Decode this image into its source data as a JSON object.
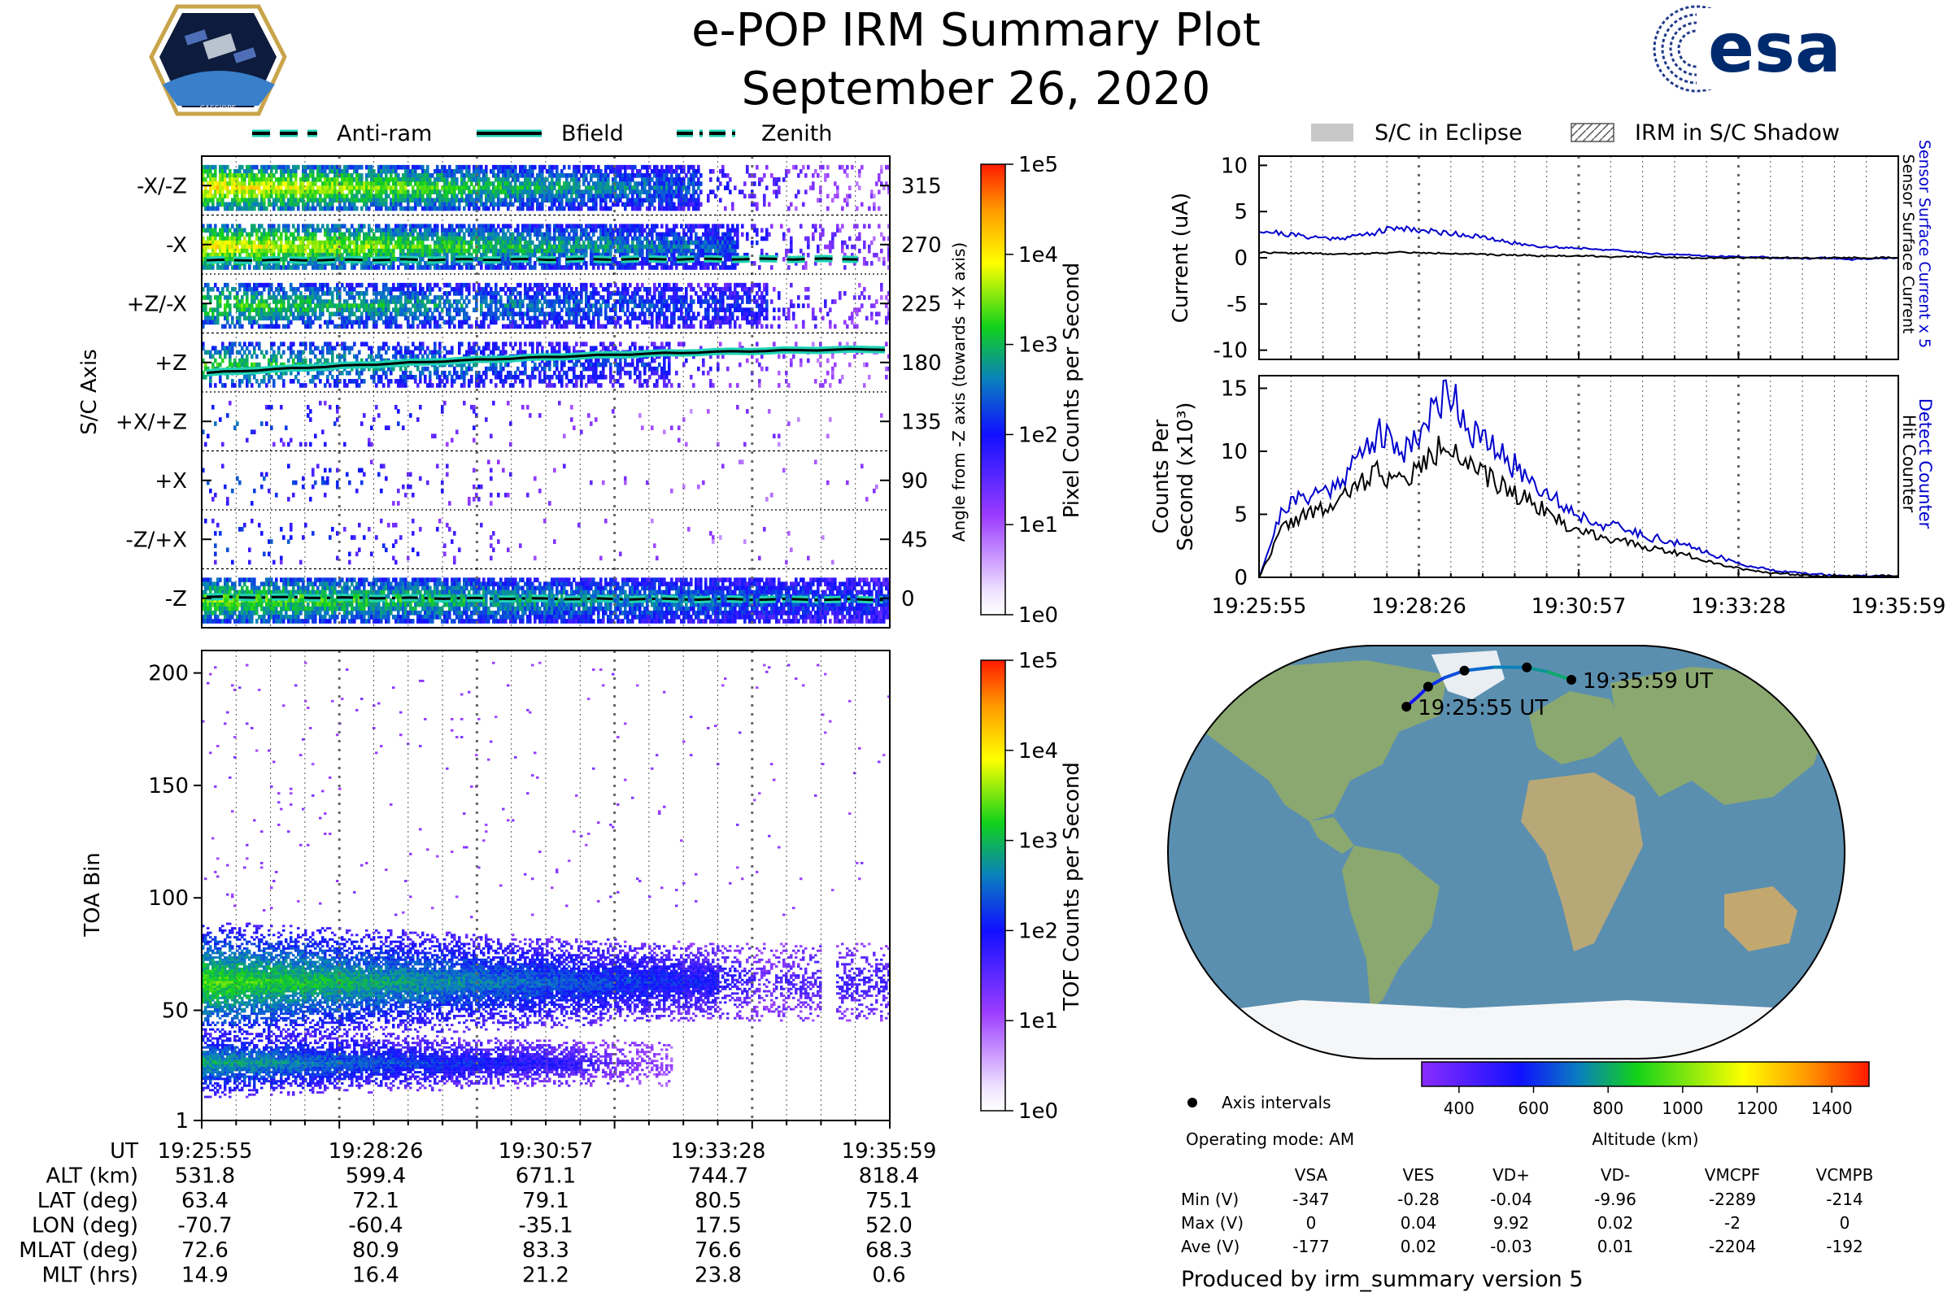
{
  "title": "e-POP IRM Summary Plot",
  "date": "September 26, 2020",
  "logos": {
    "mission_badge": "CASSIOPE",
    "agency": "esa"
  },
  "colors": {
    "blue": "#0000cc",
    "teal": "#1fd3b5",
    "eclipse": "#c8c8c8",
    "map_land": "#8ba870",
    "map_ocean": "#5b8fb0",
    "map_ice": "#f4f6f8"
  },
  "legend_top": {
    "items": [
      {
        "label": "Anti-ram",
        "style": "dashed"
      },
      {
        "label": "Bfield",
        "style": "solid"
      },
      {
        "label": "Zenith",
        "style": "dashdot"
      }
    ]
  },
  "legend_right": {
    "items": [
      {
        "label": "S/C in Eclipse",
        "style": "fill"
      },
      {
        "label": "IRM in S/C Shadow",
        "style": "hatch"
      }
    ]
  },
  "time_ticks": [
    "19:25:55",
    "19:28:26",
    "19:30:57",
    "19:33:28",
    "19:35:59"
  ],
  "chart_data": [
    {
      "id": "pixel",
      "type": "heatmap",
      "ylabel": "S/C Axis",
      "right_ylabel": "Angle from -Z axis (towards +X axis)",
      "sc_axes": [
        {
          "label": "-X/-Z",
          "angle": 315
        },
        {
          "label": "-X",
          "angle": 270
        },
        {
          "label": "+Z/-X",
          "angle": 225
        },
        {
          "label": "+Z",
          "angle": 180
        },
        {
          "label": "+X/+Z",
          "angle": 135
        },
        {
          "label": "+X",
          "angle": 90
        },
        {
          "label": "-Z/+X",
          "angle": 45
        },
        {
          "label": "-Z",
          "angle": 0
        }
      ],
      "angle_ticks": [
        "315",
        "270",
        "225",
        "180",
        "135",
        "90",
        "45",
        "0"
      ],
      "ylim": [
        -22.5,
        337.5
      ],
      "colorbar": {
        "label": "Pixel Counts per Second",
        "ticks": [
          "1e5",
          "1e4",
          "1e3",
          "1e2",
          "1e1",
          "1e0"
        ]
      },
      "lines": [
        {
          "name": "Anti-ram",
          "angle_start": 258,
          "angle_end": 259,
          "t_end": 0.96
        },
        {
          "name": "Bfield",
          "angle_start": 172,
          "angle_end": 190,
          "t_end": 1.0
        },
        {
          "name": "Zenith",
          "angle_start": 1,
          "angle_end": -1,
          "t_end": 1.0
        }
      ]
    },
    {
      "id": "tof",
      "type": "heatmap",
      "ylabel": "TOA Bin",
      "ylim": [
        1,
        210
      ],
      "yticks": [
        1,
        50,
        100,
        150,
        200
      ],
      "colorbar": {
        "label": "TOF Counts per Second",
        "ticks": [
          "1e5",
          "1e4",
          "1e3",
          "1e2",
          "1e1",
          "1e0"
        ]
      },
      "bands": [
        {
          "center": 62,
          "half_width": 12,
          "peak_log": 2.4,
          "fade_end": 0.75
        },
        {
          "center": 26,
          "half_width": 7,
          "peak_log": 1.9,
          "fade_end": 0.55
        }
      ]
    },
    {
      "id": "current",
      "type": "line",
      "ylabel": "Current (uA)",
      "right_labels": [
        "Sensor Surface Current x 5",
        "Sensor Surface Current"
      ],
      "ylim": [
        -11,
        11
      ],
      "yticks": [
        10,
        5,
        0,
        -5,
        -10
      ],
      "series": [
        {
          "name": "Sensor Surface Current x 5",
          "color": "#0000cc",
          "values": [
            3.0,
            2.6,
            2.3,
            2.1,
            2.3,
            2.8,
            3.3,
            2.9,
            2.7,
            2.4,
            1.9,
            1.5,
            1.2,
            1.1,
            1.0,
            0.8,
            0.6,
            0.4,
            0.3,
            0.2,
            0.1,
            0.1,
            0.0,
            -0.1,
            0.0,
            -0.2,
            -0.1,
            0.0
          ]
        },
        {
          "name": "Sensor Surface Current",
          "color": "#000000",
          "values": [
            0.6,
            0.5,
            0.5,
            0.4,
            0.4,
            0.5,
            0.6,
            0.5,
            0.5,
            0.4,
            0.3,
            0.3,
            0.2,
            0.2,
            0.2,
            0.1,
            0.1,
            0.1,
            0.0,
            0.0,
            0.0,
            0.0,
            0.0,
            0.0,
            0.0,
            0.0,
            0.0,
            0.0
          ]
        }
      ]
    },
    {
      "id": "counts",
      "type": "line",
      "ylabel": [
        "Counts Per",
        "Second (x10³)"
      ],
      "right_labels": [
        "Detect Counter",
        "Hit Counter"
      ],
      "ylim": [
        0,
        16
      ],
      "yticks": [
        0,
        5,
        10,
        15
      ],
      "series": [
        {
          "name": "Detect Counter",
          "color": "#0000cc",
          "values": [
            0,
            5.5,
            6.5,
            7,
            9,
            11.5,
            10,
            12,
            15.2,
            11.5,
            10,
            8.5,
            7,
            5.5,
            4.5,
            4,
            3.5,
            3,
            2.5,
            2,
            1.2,
            0.8,
            0.5,
            0.3,
            0.2,
            0.1,
            0.1,
            0.1
          ]
        },
        {
          "name": "Hit Counter",
          "color": "#000000",
          "values": [
            0,
            4,
            5,
            5.5,
            7,
            8.5,
            7.5,
            9,
            11,
            8.5,
            7.5,
            6.5,
            5.5,
            4,
            3.5,
            3,
            2.5,
            2.2,
            1.8,
            1.3,
            0.8,
            0.5,
            0.3,
            0.2,
            0.1,
            0.1,
            0.1,
            0.1
          ]
        }
      ]
    }
  ],
  "map": {
    "start_label": "19:25:55 UT",
    "end_label": "19:35:59 UT",
    "track": [
      [
        -70.7,
        63.4
      ],
      [
        -65,
        68
      ],
      [
        -60.4,
        72.1
      ],
      [
        -50,
        76
      ],
      [
        -35.1,
        79.1
      ],
      [
        -10,
        80.6
      ],
      [
        17.5,
        80.5
      ],
      [
        35,
        78.5
      ],
      [
        52.0,
        75.1
      ]
    ],
    "axis_interval_points": [
      [
        -70.7,
        63.4
      ],
      [
        -60.4,
        72.1
      ],
      [
        -35.1,
        79.1
      ],
      [
        17.5,
        80.5
      ],
      [
        52.0,
        75.1
      ]
    ],
    "track_altitudes": [
      531.8,
      560,
      599.4,
      635,
      671.1,
      705,
      744.7,
      780,
      818.4
    ],
    "altitude_colorbar": {
      "label": "Altitude (km)",
      "min": 300,
      "max": 1500,
      "ticks": [
        "400",
        "600",
        "800",
        "1000",
        "1200",
        "1400"
      ]
    },
    "axis_intervals_label": "Axis intervals",
    "operating_mode": "Operating mode: AM"
  },
  "ephemeris": {
    "rows": [
      {
        "label": "UT",
        "values": [
          "19:25:55",
          "19:28:26",
          "19:30:57",
          "19:33:28",
          "19:35:59"
        ]
      },
      {
        "label": "ALT (km)",
        "values": [
          "531.8",
          "599.4",
          "671.1",
          "744.7",
          "818.4"
        ]
      },
      {
        "label": "LAT (deg)",
        "values": [
          "63.4",
          "72.1",
          "79.1",
          "80.5",
          "75.1"
        ]
      },
      {
        "label": "LON (deg)",
        "values": [
          "-70.7",
          "-60.4",
          "-35.1",
          "17.5",
          "52.0"
        ]
      },
      {
        "label": "MLAT (deg)",
        "values": [
          "72.6",
          "80.9",
          "83.3",
          "76.6",
          "68.3"
        ]
      },
      {
        "label": "MLT (hrs)",
        "values": [
          "14.9",
          "16.4",
          "21.2",
          "23.8",
          "0.6"
        ]
      }
    ]
  },
  "voltages": {
    "headers": [
      "VSA",
      "VES",
      "VD+",
      "VD-",
      "VMCPF",
      "VCMPB"
    ],
    "rows": [
      {
        "label": "Min (V)",
        "values": [
          "-347",
          "-0.28",
          "-0.04",
          "-9.96",
          "-2289",
          "-214"
        ]
      },
      {
        "label": "Max (V)",
        "values": [
          "0",
          "0.04",
          "9.92",
          "0.02",
          "-2",
          "0"
        ]
      },
      {
        "label": "Ave (V)",
        "values": [
          "-177",
          "0.02",
          "-0.03",
          "0.01",
          "-2204",
          "-192"
        ]
      }
    ]
  },
  "footer": "Produced by irm_summary version 5"
}
